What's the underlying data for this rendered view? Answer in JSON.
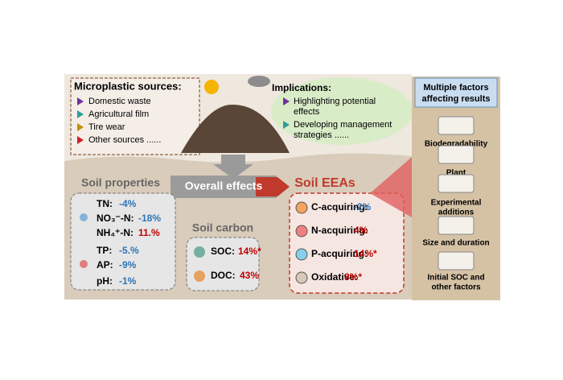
{
  "sources": {
    "title": "Microplastic sources:",
    "items": [
      "Domestic waste",
      "Agricultural film",
      "Tire wear",
      "Other sources ......"
    ]
  },
  "implications": {
    "title": "Implications:",
    "items": [
      [
        "Highlighting potential",
        "effects"
      ],
      [
        "Developing management",
        "strategies ......"
      ]
    ]
  },
  "overall": "Overall effects",
  "soil_properties": {
    "title": "Soil properties",
    "items": [
      {
        "label": "TN:",
        "value": "-4%"
      },
      {
        "label": "NO₃⁻-N:",
        "value": "-18%"
      },
      {
        "label": "NH₄⁺-N:",
        "value": "11.%"
      },
      {
        "label": "TP:",
        "value": "-5.%"
      },
      {
        "label": "AP:",
        "value": "-9%"
      },
      {
        "label": "pH:",
        "value": "-1%"
      }
    ]
  },
  "soil_carbon": {
    "title": "Soil carbon",
    "items": [
      {
        "label": "SOC:",
        "value": "14%*"
      },
      {
        "label": "DOC:",
        "value": "43%"
      }
    ]
  },
  "soil_eeas": {
    "title": "Soil EEAs",
    "items": [
      {
        "label": "C-acquiring:",
        "value": "-2%"
      },
      {
        "label": "N-acquiring:",
        "value": "4%"
      },
      {
        "label": "P-acquiring:",
        "value": "14%*"
      },
      {
        "label": "Oxidative:",
        "value": "8%*"
      }
    ]
  },
  "factors": {
    "title": [
      "Multiple factors",
      "affecting results"
    ],
    "items": [
      [
        "Biodegradability"
      ],
      [
        "Plant"
      ],
      [
        "Experimental",
        "additions"
      ],
      [
        "Size and duration"
      ],
      [
        "Initial SOC and",
        "other factors"
      ]
    ]
  }
}
